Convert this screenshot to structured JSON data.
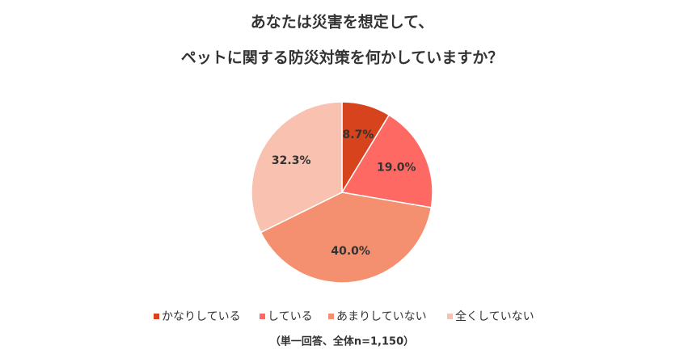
{
  "chart_data": {
    "type": "pie",
    "title": [
      "あなたは災害を想定して、",
      "ペットに関する防災対策を何かしていますか？"
    ],
    "categories": [
      "かなりしている",
      "している",
      "あまりしていない",
      "全くしていない"
    ],
    "values": [
      8.7,
      19.0,
      40.0,
      32.3
    ],
    "value_labels": [
      "8.7%",
      "19.0%",
      "40.0%",
      "32.3%"
    ],
    "colors": [
      "#d6431c",
      "#fe6a63",
      "#f4906f",
      "#f8c1b0"
    ],
    "legend": "bottom",
    "note": "（単一回答、全体n=1,150）"
  }
}
